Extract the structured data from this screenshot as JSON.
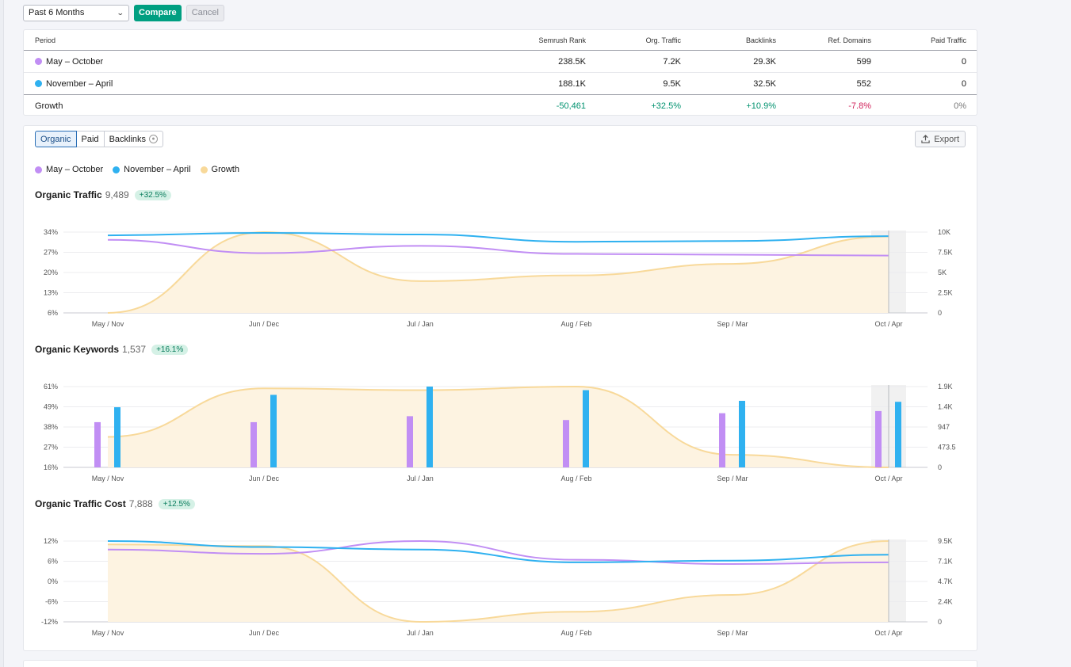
{
  "toolbar": {
    "period_select": "Past 6 Months",
    "compare_label": "Compare",
    "cancel_label": "Cancel"
  },
  "table": {
    "headers": [
      "Period",
      "Semrush Rank",
      "Org. Traffic",
      "Backlinks",
      "Ref. Domains",
      "Paid Traffic"
    ],
    "rows": [
      {
        "period": "May – October",
        "color": "#c18ef4",
        "semrush_rank": "238.5K",
        "org_traffic": "7.2K",
        "backlinks": "29.3K",
        "ref_domains": "599",
        "paid_traffic": "0"
      },
      {
        "period": "November – April",
        "color": "#2fb1f0",
        "semrush_rank": "188.1K",
        "org_traffic": "9.5K",
        "backlinks": "32.5K",
        "ref_domains": "552",
        "paid_traffic": "0"
      }
    ],
    "growth": {
      "label": "Growth",
      "semrush_rank": "-50,461",
      "org_traffic": "+32.5%",
      "backlinks": "+10.9%",
      "ref_domains": "-7.8%",
      "paid_traffic": "0%"
    }
  },
  "tabs": {
    "organic": "Organic",
    "paid": "Paid",
    "backlinks": "Backlinks",
    "export": "Export"
  },
  "legend": {
    "may_oct": "May – October",
    "nov_apr": "November – April",
    "growth": "Growth"
  },
  "colors": {
    "may_oct": "#c18ef4",
    "nov_apr": "#2fb1f0",
    "growth": "#f8d99a",
    "growth_fill": "#fdf3e1",
    "positive": "#00926f",
    "negative": "#d1235b"
  },
  "chart_data": [
    {
      "type": "line",
      "title": "Organic Traffic",
      "total": "9,489",
      "badge": "+32.5%",
      "categories": [
        "May / Nov",
        "Jun / Dec",
        "Jul / Jan",
        "Aug / Feb",
        "Sep / Mar",
        "Oct / Apr"
      ],
      "left_ticks": [
        "34%",
        "27%",
        "20%",
        "13%",
        "6%"
      ],
      "right_ticks": [
        "10K",
        "7.5K",
        "5K",
        "2.5K",
        "0"
      ],
      "ylim_left": [
        6,
        34
      ],
      "ylim_right": [
        0,
        10000
      ],
      "series": [
        {
          "name": "May – October",
          "values": [
            9050,
            7400,
            8300,
            7300,
            7200,
            7100
          ]
        },
        {
          "name": "November – April",
          "values": [
            9600,
            9900,
            9700,
            8800,
            8900,
            9500
          ]
        },
        {
          "name": "Growth",
          "area": true,
          "values": [
            6,
            34,
            17,
            19,
            23,
            32.5
          ]
        }
      ]
    },
    {
      "type": "bar",
      "title": "Organic Keywords",
      "total": "1,537",
      "badge": "+16.1%",
      "categories": [
        "May / Nov",
        "Jun / Dec",
        "Jul / Jan",
        "Aug / Feb",
        "Sep / Mar",
        "Oct / Apr"
      ],
      "left_ticks": [
        "61%",
        "49%",
        "38%",
        "27%",
        "16%"
      ],
      "right_ticks": [
        "1.9K",
        "1.4K",
        "947",
        "473.5",
        "0"
      ],
      "ylim_left": [
        16,
        61
      ],
      "ylim_right": [
        0,
        1894
      ],
      "series": [
        {
          "name": "May – October",
          "values": [
            1060,
            1060,
            1200,
            1110,
            1270,
            1320
          ]
        },
        {
          "name": "November – April",
          "values": [
            1410,
            1700,
            1894,
            1810,
            1560,
            1537
          ]
        },
        {
          "name": "Growth",
          "area": true,
          "values": [
            33,
            60,
            59,
            61,
            23,
            16
          ]
        }
      ]
    },
    {
      "type": "line",
      "title": "Organic Traffic Cost",
      "total": "7,888",
      "badge": "+12.5%",
      "categories": [
        "May / Nov",
        "Jun / Dec",
        "Jul / Jan",
        "Aug / Feb",
        "Sep / Mar",
        "Oct / Apr"
      ],
      "left_ticks": [
        "12%",
        "6%",
        "0%",
        "-6%",
        "-12%"
      ],
      "right_ticks": [
        "9.5K",
        "7.1K",
        "4.7K",
        "2.4K",
        "0"
      ],
      "ylim_left": [
        -12,
        12
      ],
      "ylim_right": [
        0,
        9500
      ],
      "series": [
        {
          "name": "May – October",
          "values": [
            8500,
            8000,
            9500,
            7300,
            6800,
            7000
          ]
        },
        {
          "name": "November – April",
          "values": [
            9500,
            8800,
            8500,
            7000,
            7200,
            7888
          ]
        },
        {
          "name": "Growth",
          "area": true,
          "values": [
            11,
            10.5,
            -12,
            -9,
            -4,
            12
          ]
        }
      ]
    }
  ]
}
